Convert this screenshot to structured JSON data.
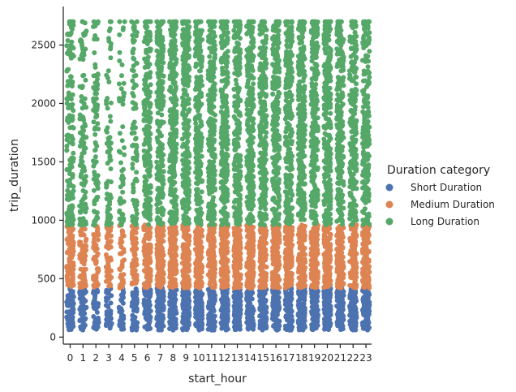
{
  "chart_data": {
    "type": "scatter",
    "subtype": "strip",
    "xlabel": "start_hour",
    "ylabel": "trip_duration",
    "categories": [
      "0",
      "1",
      "2",
      "3",
      "4",
      "5",
      "6",
      "7",
      "8",
      "9",
      "10",
      "11",
      "12",
      "13",
      "14",
      "15",
      "16",
      "17",
      "18",
      "19",
      "20",
      "21",
      "22",
      "23"
    ],
    "yticks": [
      0,
      500,
      1000,
      1500,
      2000,
      2500
    ],
    "ylim": [
      -60,
      2830
    ],
    "grid": false,
    "legend": {
      "title": "Duration category",
      "placement": "right",
      "entries": [
        {
          "name": "Short Duration",
          "color": "#4c72b0"
        },
        {
          "name": "Medium Duration",
          "color": "#dd8452"
        },
        {
          "name": "Long Duration",
          "color": "#55a868"
        }
      ]
    },
    "series": [
      {
        "name": "Short Duration",
        "color": "#4c72b0",
        "range": [
          60,
          420
        ]
      },
      {
        "name": "Medium Duration",
        "color": "#dd8452",
        "range": [
          420,
          960
        ]
      },
      {
        "name": "Long Duration",
        "color": "#55a868",
        "range": [
          960,
          2700
        ]
      }
    ],
    "density_by_hour": [
      0.55,
      0.42,
      0.3,
      0.22,
      0.16,
      0.3,
      0.75,
      0.9,
      0.95,
      0.92,
      0.9,
      0.92,
      0.95,
      0.95,
      0.95,
      0.95,
      0.97,
      1.0,
      1.0,
      0.98,
      0.95,
      0.92,
      0.85,
      0.75
    ]
  }
}
